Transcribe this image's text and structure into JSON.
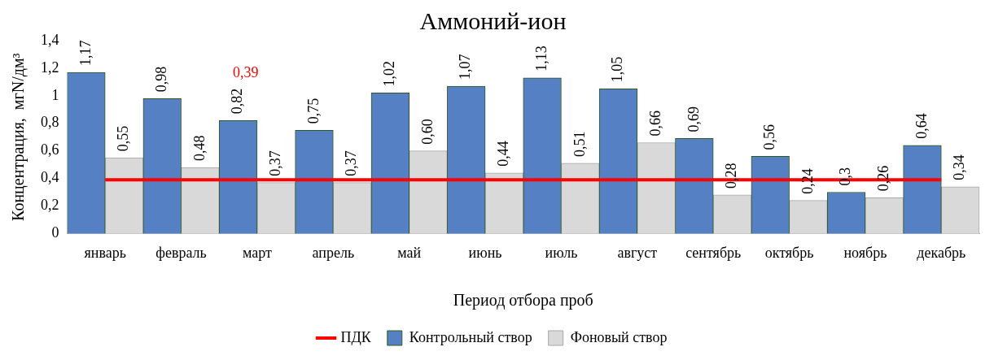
{
  "chart_data": {
    "type": "bar",
    "title": "Аммоний-ион",
    "xlabel": "Период отбора проб",
    "ylabel": "Концентрация,  мгN/дм³",
    "categories": [
      "январь",
      "февраль",
      "март",
      "апрель",
      "май",
      "июнь",
      "июль",
      "август",
      "сентябрь",
      "октябрь",
      "ноябрь",
      "декабрь"
    ],
    "series": [
      {
        "name": "Контрольный створ",
        "color": "#5580c4",
        "values": [
          1.17,
          0.98,
          0.82,
          0.75,
          1.02,
          1.07,
          1.13,
          1.05,
          0.69,
          0.56,
          0.3,
          0.64
        ],
        "value_labels": [
          "1,17",
          "0,98",
          "0,82",
          "0,75",
          "1,02",
          "1,07",
          "1,13",
          "1,05",
          "0,69",
          "0,56",
          "0,3",
          "0,64"
        ]
      },
      {
        "name": "Фоновый створ",
        "color": "#d9d9d9",
        "values": [
          0.55,
          0.48,
          0.37,
          0.37,
          0.6,
          0.44,
          0.51,
          0.66,
          0.28,
          0.24,
          0.26,
          0.34
        ],
        "value_labels": [
          "0,55",
          "0,48",
          "0,37",
          "0,37",
          "0,60",
          "0,44",
          "0,51",
          "0,66",
          "0,28",
          "0,24",
          "0,26",
          "0,34"
        ]
      },
      {
        "name": "ПДК",
        "type": "line",
        "color": "#ff0000",
        "values": [
          0.39,
          0.39,
          0.39,
          0.39,
          0.39,
          0.39,
          0.39,
          0.39,
          0.39,
          0.39,
          0.39,
          0.39
        ]
      }
    ],
    "annotations": [
      "0,39"
    ],
    "ylim": [
      0,
      1.4
    ],
    "yticks": [
      0,
      {
        "value": 0.2,
        "label": "0,2"
      },
      {
        "value": 0.4,
        "label": "0,4"
      },
      {
        "value": 0.6,
        "label": "0,6"
      },
      {
        "value": 0.8,
        "label": "0,8"
      },
      1,
      {
        "value": 1.2,
        "label": "1,2"
      },
      {
        "value": 1.4,
        "label": "1,4"
      }
    ],
    "grid": false,
    "legend": "bottom"
  }
}
